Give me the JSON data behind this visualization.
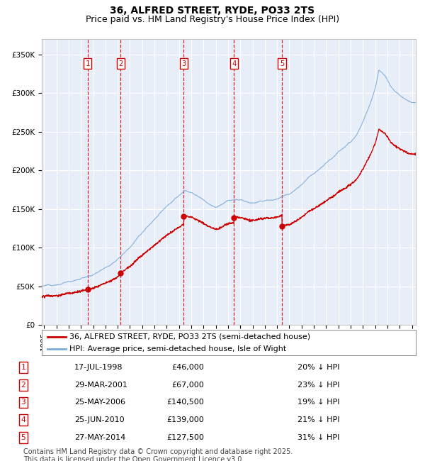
{
  "title": "36, ALFRED STREET, RYDE, PO33 2TS",
  "subtitle": "Price paid vs. HM Land Registry's House Price Index (HPI)",
  "ylabel_ticks": [
    "£0",
    "£50K",
    "£100K",
    "£150K",
    "£200K",
    "£250K",
    "£300K",
    "£350K"
  ],
  "ytick_vals": [
    0,
    50000,
    100000,
    150000,
    200000,
    250000,
    300000,
    350000
  ],
  "ylim": [
    0,
    370000
  ],
  "xlim_start": 1994.8,
  "xlim_end": 2025.3,
  "sale_dates": [
    1998.54,
    2001.24,
    2006.39,
    2010.48,
    2014.4
  ],
  "sale_prices": [
    46000,
    67000,
    140500,
    139000,
    127500
  ],
  "sale_labels": [
    "1",
    "2",
    "3",
    "4",
    "5"
  ],
  "sale_label_dates": [
    "17-JUL-1998",
    "29-MAR-2001",
    "25-MAY-2006",
    "25-JUN-2010",
    "27-MAY-2014"
  ],
  "sale_label_prices": [
    "£46,000",
    "£67,000",
    "£140,500",
    "£139,000",
    "£127,500"
  ],
  "sale_label_hpi": [
    "20% ↓ HPI",
    "23% ↓ HPI",
    "19% ↓ HPI",
    "21% ↓ HPI",
    "31% ↓ HPI"
  ],
  "legend_line1": "36, ALFRED STREET, RYDE, PO33 2TS (semi-detached house)",
  "legend_line2": "HPI: Average price, semi-detached house, Isle of Wight",
  "footer": "Contains HM Land Registry data © Crown copyright and database right 2025.\nThis data is licensed under the Open Government Licence v3.0.",
  "line_red_color": "#cc0000",
  "line_blue_color": "#7aabdb",
  "bg_color": "#e8eef8",
  "grid_color": "#cccccc",
  "vline_color": "#cc0000",
  "box_color": "#cc0000",
  "title_fontsize": 10,
  "subtitle_fontsize": 9,
  "tick_fontsize": 7.5,
  "legend_fontsize": 8,
  "footer_fontsize": 7
}
